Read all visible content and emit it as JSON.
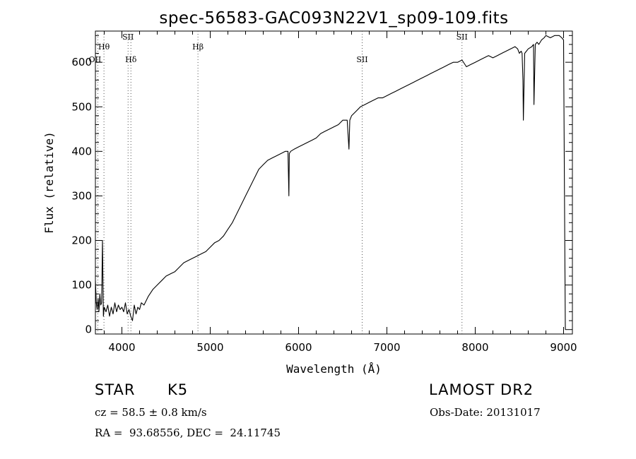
{
  "chart_data": {
    "type": "line",
    "title": "spec-56583-GAC093N22V1_sp09-109.fits",
    "xlabel": "Wavelength (Å)",
    "ylabel": "Flux (relative)",
    "xlim": [
      3700,
      9100
    ],
    "ylim": [
      -10,
      670
    ],
    "xticks": [
      4000,
      5000,
      6000,
      7000,
      8000,
      9000
    ],
    "yticks": [
      0,
      100,
      200,
      300,
      400,
      500,
      600
    ],
    "grid": false,
    "series": [
      {
        "x": [
          3700,
          3710,
          3720,
          3730,
          3740,
          3750,
          3760,
          3770,
          3780,
          3790,
          3800,
          3810,
          3820,
          3840,
          3860,
          3880,
          3900,
          3920,
          3940,
          3960,
          3980,
          4000,
          4020,
          4040,
          4060,
          4080,
          4100,
          4120,
          4140,
          4160,
          4180,
          4200,
          4220,
          4250,
          4300,
          4350,
          4400,
          4450,
          4500,
          4550,
          4600,
          4650,
          4700,
          4750,
          4800,
          4850,
          4900,
          4950,
          5000,
          5050,
          5100,
          5150,
          5200,
          5250,
          5300,
          5350,
          5400,
          5450,
          5500,
          5550,
          5600,
          5650,
          5700,
          5750,
          5800,
          5850,
          5880,
          5890,
          5895,
          5910,
          5950,
          6000,
          6050,
          6100,
          6150,
          6200,
          6250,
          6300,
          6350,
          6400,
          6450,
          6500,
          6550,
          6570,
          6580,
          6600,
          6650,
          6700,
          6750,
          6800,
          6850,
          6900,
          6950,
          7000,
          7050,
          7100,
          7150,
          7200,
          7250,
          7300,
          7350,
          7400,
          7450,
          7500,
          7550,
          7600,
          7650,
          7700,
          7750,
          7800,
          7850,
          7900,
          7950,
          8000,
          8050,
          8100,
          8150,
          8200,
          8250,
          8300,
          8350,
          8400,
          8450,
          8480,
          8500,
          8520,
          8530,
          8540,
          8545,
          8560,
          8580,
          8600,
          8640,
          8660,
          8665,
          8680,
          8700,
          8720,
          8750,
          8780,
          8800,
          8850,
          8900,
          8950,
          8980,
          9000,
          9010,
          9020
        ],
        "values": [
          110,
          60,
          45,
          70,
          40,
          80,
          55,
          60,
          200,
          30,
          50,
          45,
          40,
          55,
          30,
          50,
          35,
          60,
          40,
          55,
          45,
          50,
          40,
          60,
          35,
          45,
          30,
          20,
          55,
          35,
          50,
          45,
          60,
          55,
          75,
          90,
          100,
          110,
          120,
          125,
          130,
          140,
          150,
          155,
          160,
          165,
          170,
          175,
          185,
          195,
          200,
          210,
          225,
          240,
          260,
          280,
          300,
          320,
          340,
          360,
          370,
          380,
          385,
          390,
          395,
          400,
          400,
          300,
          395,
          400,
          405,
          410,
          415,
          420,
          425,
          430,
          440,
          445,
          450,
          455,
          460,
          470,
          470,
          405,
          470,
          480,
          490,
          500,
          505,
          510,
          515,
          520,
          520,
          525,
          530,
          535,
          540,
          545,
          550,
          555,
          560,
          565,
          570,
          575,
          580,
          585,
          590,
          595,
          600,
          600,
          605,
          590,
          595,
          600,
          605,
          610,
          615,
          610,
          615,
          620,
          625,
          630,
          635,
          630,
          620,
          625,
          620,
          560,
          470,
          620,
          625,
          630,
          635,
          640,
          505,
          640,
          645,
          640,
          650,
          655,
          660,
          655,
          660,
          660,
          655,
          650,
          300,
          0
        ]
      }
    ],
    "annotations": [
      {
        "label": "Hθ",
        "x": 3797
      },
      {
        "label": "SII",
        "x": 4070
      },
      {
        "label": "OII",
        "x": 3727
      },
      {
        "label": "Hδ",
        "x": 4102
      },
      {
        "label": "Hβ",
        "x": 4861
      },
      {
        "label": "SII",
        "x": 6720
      },
      {
        "label": "SII",
        "x": 7850
      }
    ]
  },
  "info": {
    "class_label": "STAR",
    "subclass_label": "K5",
    "survey": "LAMOST DR2",
    "redshift_line": "cz = 58.5 ± 0.8 km/s",
    "obs_date": "Obs-Date: 20131017",
    "coords": "RA =  93.68556, DEC =  24.11745"
  }
}
